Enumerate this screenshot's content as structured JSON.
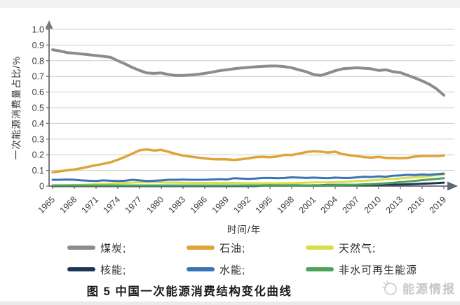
{
  "page": {
    "caption": "图 5  中国一次能源消费结构变化曲线",
    "watermark": {
      "text": "能源情报"
    }
  },
  "legend": {
    "items": [
      {
        "label": "煤炭;",
        "color": "#8C8C8C"
      },
      {
        "label": "石油;",
        "color": "#E0A33A"
      },
      {
        "label": "天然气;",
        "color": "#D8DE4A"
      },
      {
        "label": "核能;",
        "color": "#1F3557"
      },
      {
        "label": "水能;",
        "color": "#3B73B5"
      },
      {
        "label": "非水可再生能源",
        "color": "#4BA35C"
      }
    ]
  },
  "chart_data": {
    "type": "line",
    "title": "",
    "xlabel": "时间/年",
    "ylabel": "一次能源消费量占比/%",
    "ylim": [
      0,
      1.0
    ],
    "grid": "horizontal",
    "legend_position": "bottom",
    "yticks": [
      "0",
      "0.1",
      "0.2",
      "0.3",
      "0.4",
      "0.5",
      "0.6",
      "0.7",
      "0.8",
      "0.9",
      "1.0"
    ],
    "xticks": [
      1965,
      1968,
      1971,
      1974,
      1977,
      1980,
      1983,
      1986,
      1989,
      1992,
      1995,
      1998,
      2001,
      2004,
      2007,
      2010,
      2013,
      2016,
      2019
    ],
    "x_start": 1965,
    "x_end": 2019,
    "draw_order": [
      0,
      1,
      2,
      3,
      5,
      4
    ],
    "series": [
      {
        "name": "煤炭",
        "color": "#8C8C8C",
        "width": 4,
        "values": [
          0.87,
          0.862,
          0.852,
          0.848,
          0.843,
          0.838,
          0.833,
          0.828,
          0.822,
          0.8,
          0.78,
          0.757,
          0.738,
          0.722,
          0.719,
          0.722,
          0.712,
          0.706,
          0.706,
          0.709,
          0.713,
          0.719,
          0.727,
          0.736,
          0.742,
          0.748,
          0.753,
          0.757,
          0.761,
          0.764,
          0.766,
          0.766,
          0.762,
          0.755,
          0.742,
          0.73,
          0.712,
          0.706,
          0.72,
          0.736,
          0.748,
          0.752,
          0.755,
          0.752,
          0.748,
          0.738,
          0.742,
          0.73,
          0.724,
          0.707,
          0.69,
          0.671,
          0.65,
          0.62,
          0.58
        ]
      },
      {
        "name": "石油",
        "color": "#E0A33A",
        "width": 3.5,
        "values": [
          0.088,
          0.094,
          0.101,
          0.106,
          0.114,
          0.124,
          0.133,
          0.142,
          0.152,
          0.168,
          0.186,
          0.207,
          0.228,
          0.234,
          0.227,
          0.231,
          0.219,
          0.205,
          0.195,
          0.188,
          0.182,
          0.177,
          0.172,
          0.171,
          0.171,
          0.167,
          0.171,
          0.177,
          0.185,
          0.186,
          0.184,
          0.189,
          0.199,
          0.198,
          0.207,
          0.217,
          0.222,
          0.22,
          0.214,
          0.219,
          0.204,
          0.197,
          0.191,
          0.185,
          0.182,
          0.186,
          0.18,
          0.179,
          0.178,
          0.18,
          0.188,
          0.192,
          0.192,
          0.192,
          0.195
        ]
      },
      {
        "name": "天然气",
        "color": "#D8DE4A",
        "width": 3,
        "values": [
          0.005,
          0.005,
          0.006,
          0.007,
          0.008,
          0.01,
          0.012,
          0.014,
          0.016,
          0.018,
          0.02,
          0.022,
          0.024,
          0.024,
          0.025,
          0.024,
          0.022,
          0.022,
          0.021,
          0.02,
          0.02,
          0.02,
          0.02,
          0.02,
          0.02,
          0.02,
          0.019,
          0.018,
          0.018,
          0.018,
          0.018,
          0.018,
          0.018,
          0.019,
          0.02,
          0.022,
          0.023,
          0.023,
          0.024,
          0.025,
          0.026,
          0.029,
          0.032,
          0.034,
          0.036,
          0.04,
          0.044,
          0.046,
          0.049,
          0.053,
          0.056,
          0.059,
          0.064,
          0.07,
          0.074
        ]
      },
      {
        "name": "核能",
        "color": "#1F3557",
        "width": 3,
        "values": [
          0,
          0,
          0,
          0,
          0,
          0,
          0,
          0,
          0,
          0,
          0,
          0,
          0,
          0,
          0,
          0,
          0,
          0,
          0,
          0,
          0,
          0,
          0,
          0,
          0,
          0,
          0,
          0,
          0,
          0.004,
          0.005,
          0.004,
          0.004,
          0.005,
          0.005,
          0.004,
          0.005,
          0.006,
          0.008,
          0.008,
          0.008,
          0.007,
          0.007,
          0.008,
          0.008,
          0.008,
          0.009,
          0.009,
          0.01,
          0.011,
          0.013,
          0.015,
          0.017,
          0.019,
          0.022
        ]
      },
      {
        "name": "水能",
        "color": "#3B73B5",
        "width": 3,
        "values": [
          0.04,
          0.04,
          0.042,
          0.04,
          0.036,
          0.034,
          0.032,
          0.036,
          0.034,
          0.032,
          0.034,
          0.04,
          0.036,
          0.032,
          0.034,
          0.036,
          0.04,
          0.04,
          0.042,
          0.04,
          0.04,
          0.04,
          0.042,
          0.044,
          0.042,
          0.05,
          0.048,
          0.046,
          0.048,
          0.052,
          0.052,
          0.05,
          0.052,
          0.056,
          0.054,
          0.052,
          0.054,
          0.052,
          0.05,
          0.054,
          0.052,
          0.052,
          0.056,
          0.06,
          0.058,
          0.062,
          0.06,
          0.066,
          0.068,
          0.072,
          0.07,
          0.074,
          0.072,
          0.076,
          0.08
        ]
      },
      {
        "name": "非水可再生能源",
        "color": "#4BA35C",
        "width": 3,
        "values": [
          0.004,
          0.004,
          0.004,
          0.004,
          0.004,
          0.004,
          0.004,
          0.004,
          0.004,
          0.004,
          0.004,
          0.004,
          0.004,
          0.004,
          0.004,
          0.004,
          0.004,
          0.004,
          0.004,
          0.004,
          0.004,
          0.004,
          0.004,
          0.004,
          0.004,
          0.004,
          0.004,
          0.004,
          0.004,
          0.004,
          0.004,
          0.004,
          0.004,
          0.004,
          0.004,
          0.004,
          0.005,
          0.005,
          0.006,
          0.006,
          0.007,
          0.008,
          0.009,
          0.011,
          0.013,
          0.015,
          0.018,
          0.021,
          0.025,
          0.029,
          0.033,
          0.038,
          0.042,
          0.046,
          0.05
        ]
      }
    ]
  }
}
